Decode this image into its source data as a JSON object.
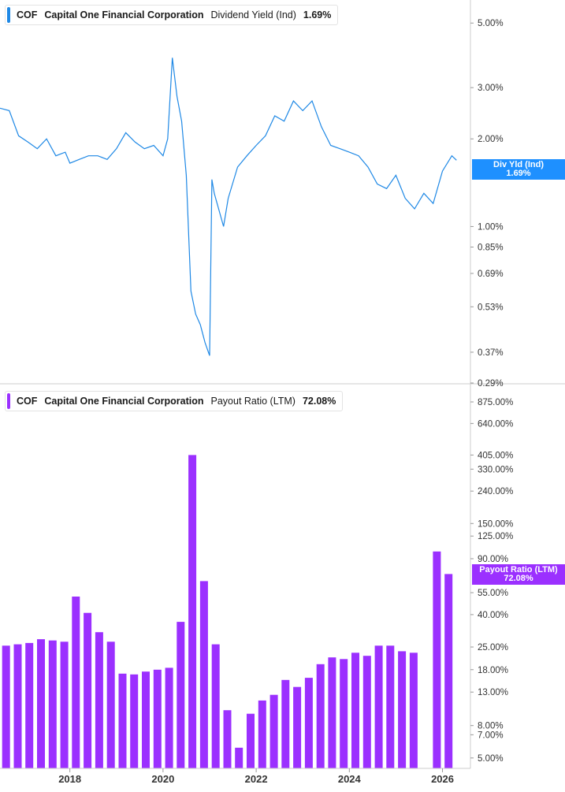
{
  "top_panel": {
    "legend": {
      "ticker": "COF",
      "company": "Capital One Financial Corporation",
      "metric": "Dividend Yield (Ind)",
      "value": "1.69%"
    },
    "tag": {
      "label": "Div Yld (Ind)",
      "value": "1.69%"
    }
  },
  "bottom_panel": {
    "legend": {
      "ticker": "COF",
      "company": "Capital One Financial Corporation",
      "metric": "Payout Ratio (LTM)",
      "value": "72.08%"
    },
    "tag": {
      "label": "Payout Ratio (LTM)",
      "value": "72.08%"
    }
  },
  "colors": {
    "yield_line": "#1e88e5",
    "payout_bars": "#9b30ff",
    "tag_blue": "#1e90ff",
    "tag_purple": "#9b30ff"
  },
  "chart_data": [
    {
      "type": "line",
      "metric": "Dividend Yield (Ind)",
      "y_scale": "log",
      "ylim": [
        0.29,
        6.0
      ],
      "yticks": [
        "5.00%",
        "3.00%",
        "2.00%",
        "1.00%",
        "0.85%",
        "0.69%",
        "0.53%",
        "0.37%",
        "0.29%"
      ],
      "ytick_values": [
        5.0,
        3.0,
        2.0,
        1.0,
        0.85,
        0.69,
        0.53,
        0.37,
        0.29
      ],
      "xlim": [
        2016.5,
        2026.6
      ],
      "x": [
        2016.5,
        2016.7,
        2016.9,
        2017.1,
        2017.3,
        2017.5,
        2017.7,
        2017.9,
        2018.0,
        2018.2,
        2018.4,
        2018.6,
        2018.8,
        2019.0,
        2019.2,
        2019.4,
        2019.6,
        2019.8,
        2020.0,
        2020.1,
        2020.2,
        2020.3,
        2020.4,
        2020.5,
        2020.6,
        2020.7,
        2020.8,
        2020.9,
        2021.0,
        2021.05,
        2021.1,
        2021.3,
        2021.4,
        2021.6,
        2021.8,
        2022.0,
        2022.2,
        2022.4,
        2022.6,
        2022.8,
        2023.0,
        2023.2,
        2023.4,
        2023.6,
        2023.8,
        2024.0,
        2024.2,
        2024.4,
        2024.6,
        2024.8,
        2025.0,
        2025.2,
        2025.4,
        2025.6,
        2025.8,
        2026.0,
        2026.2,
        2026.3
      ],
      "y": [
        2.55,
        2.5,
        2.05,
        1.95,
        1.85,
        2.0,
        1.75,
        1.8,
        1.65,
        1.7,
        1.75,
        1.75,
        1.7,
        1.85,
        2.1,
        1.95,
        1.85,
        1.9,
        1.75,
        2.0,
        3.8,
        2.8,
        2.3,
        1.5,
        0.6,
        0.5,
        0.46,
        0.4,
        0.36,
        1.45,
        1.3,
        1.0,
        1.25,
        1.6,
        1.75,
        1.9,
        2.05,
        2.4,
        2.3,
        2.7,
        2.5,
        2.7,
        2.2,
        1.9,
        1.85,
        1.8,
        1.75,
        1.6,
        1.4,
        1.35,
        1.5,
        1.25,
        1.15,
        1.3,
        1.2,
        1.55,
        1.75,
        1.69
      ],
      "latest_label": "Div Yld (Ind)",
      "latest_value": "1.69%"
    },
    {
      "type": "bar",
      "metric": "Payout Ratio (LTM)",
      "y_scale": "log",
      "ylim": [
        4.3,
        1100
      ],
      "yticks": [
        "875.00%",
        "640.00%",
        "405.00%",
        "330.00%",
        "240.00%",
        "150.00%",
        "125.00%",
        "90.00%",
        "55.00%",
        "40.00%",
        "25.00%",
        "18.00%",
        "13.00%",
        "8.00%",
        "7.00%",
        "5.00%"
      ],
      "ytick_values": [
        875,
        640,
        405,
        330,
        240,
        150,
        125,
        90,
        55,
        40,
        25,
        18,
        13,
        8,
        7,
        5
      ],
      "xlim": [
        2016.5,
        2026.6
      ],
      "xticks": [
        "2018",
        "2020",
        "2022",
        "2024",
        "2026"
      ],
      "xtick_values": [
        2018,
        2020,
        2022,
        2024,
        2026
      ],
      "x": [
        2016.63,
        2016.88,
        2017.13,
        2017.38,
        2017.63,
        2017.88,
        2018.13,
        2018.38,
        2018.63,
        2018.88,
        2019.13,
        2019.38,
        2019.63,
        2019.88,
        2020.13,
        2020.38,
        2020.63,
        2020.88,
        2021.13,
        2021.38,
        2021.63,
        2021.88,
        2022.13,
        2022.38,
        2022.63,
        2022.88,
        2023.13,
        2023.38,
        2023.63,
        2023.88,
        2024.13,
        2024.38,
        2024.63,
        2024.88,
        2025.13,
        2025.38,
        2025.63,
        2025.88,
        2026.13
      ],
      "values": [
        25.5,
        26.0,
        26.5,
        28.0,
        27.5,
        27.0,
        52.0,
        41.0,
        31.0,
        27.0,
        17.0,
        16.8,
        17.5,
        18.0,
        18.5,
        36.0,
        405.0,
        65.0,
        26.0,
        10.0,
        5.8,
        9.5,
        11.5,
        12.5,
        15.5,
        14.0,
        16.0,
        19.5,
        21.5,
        21.0,
        23.0,
        22.0,
        25.5,
        25.5,
        23.5,
        23.0,
        null,
        100.0,
        72.08
      ],
      "latest_label": "Payout Ratio (LTM)",
      "latest_value": "72.08%"
    }
  ]
}
